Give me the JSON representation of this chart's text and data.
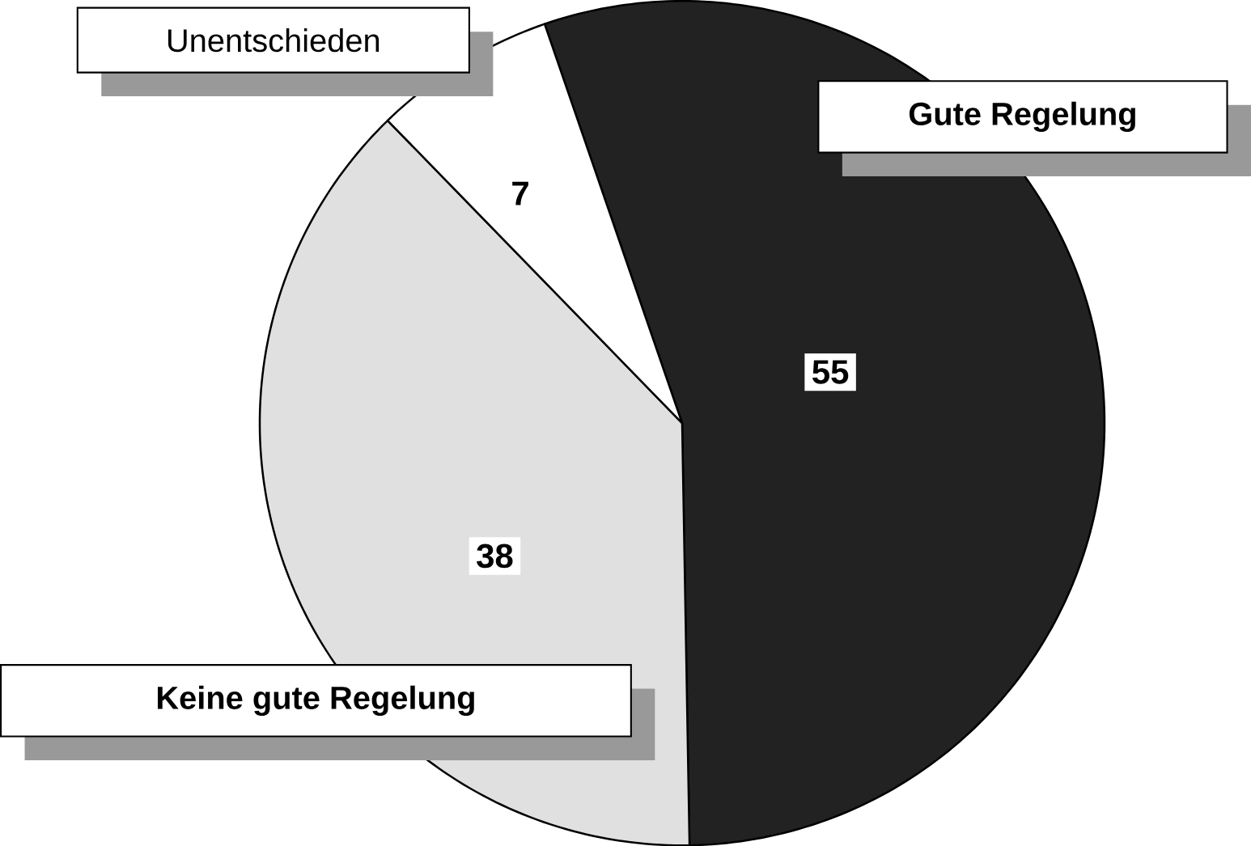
{
  "chart_data": {
    "type": "pie",
    "categories": [
      "Gute Regelung",
      "Keine gute Regelung",
      "Unentschieden"
    ],
    "values": [
      55,
      38,
      7
    ],
    "colors": [
      "#222222",
      "#e0e0e0",
      "#ffffff"
    ],
    "data_labels": true
  }
}
